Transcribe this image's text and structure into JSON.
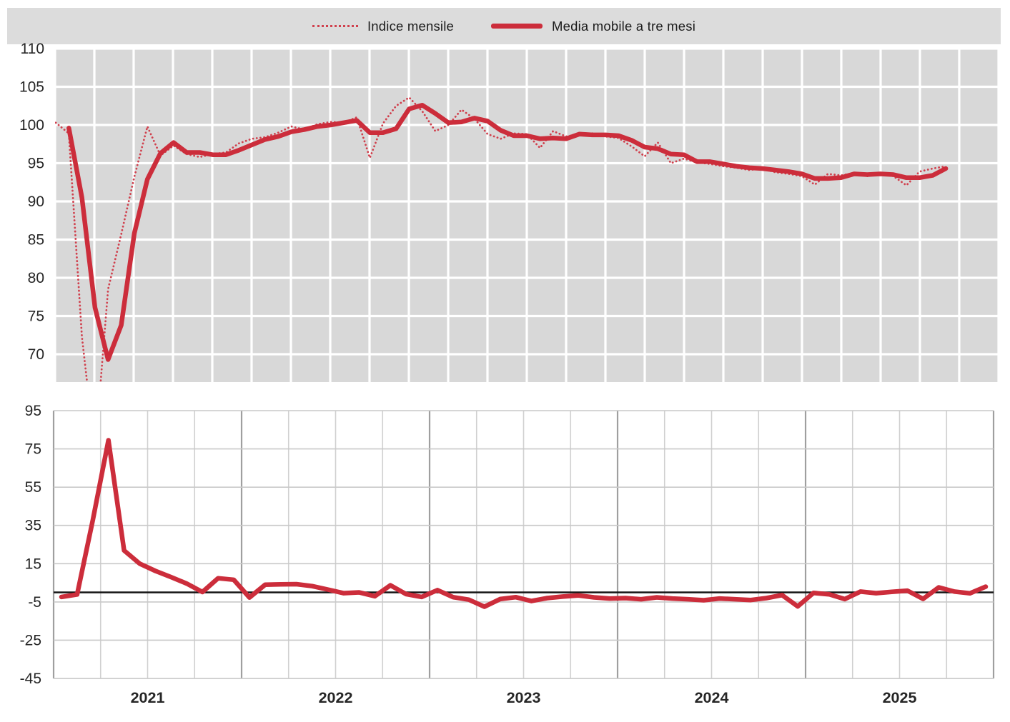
{
  "page": {
    "background": "#ffffff"
  },
  "colors": {
    "red_solid": "#cc2d3b",
    "red_dotted": "#d0404d",
    "banner_bg": "#dcdcdc",
    "plot_bg": "#d8d8d8",
    "grid_white": "#ffffff",
    "grid_light": "#c9c9c9",
    "grid_quarter": "#d0d0d0",
    "grid_year": "#9f9f9f",
    "zero_line": "#141414",
    "tick_text": "#262626"
  },
  "legend": {
    "items": [
      {
        "label": "Indice mensile",
        "swatch": "dotted-line"
      },
      {
        "label": "Media mobile a tre mesi",
        "swatch": "solid-line"
      }
    ]
  },
  "chart_data": [
    {
      "id": "indice-destagionalizzato",
      "type": "line",
      "title": "",
      "xlabel": "",
      "ylabel": "",
      "x_start_month": "2020-01",
      "x_axis_end_month": "2025-12",
      "ylim": [
        66.35,
        110
      ],
      "y_ticks": [
        110,
        105,
        100,
        95,
        90,
        85,
        80,
        75,
        70
      ],
      "grid": "white gridlines on gray background, vertical lines quarterly",
      "legend_position": "top-center",
      "series": [
        {
          "name": "Indice mensile",
          "style": "dotted",
          "start_month": "2020-01",
          "values": [
            100.3,
            98.9,
            72.3,
            57.2,
            78.5,
            85.7,
            93.2,
            99.8,
            96.0,
            97.3,
            96.2,
            95.8,
            96.2,
            96.4,
            97.6,
            98.2,
            98.4,
            99.0,
            99.8,
            99.4,
            100.1,
            100.4,
            100.3,
            101.0,
            95.7,
            100.2,
            102.5,
            103.6,
            101.8,
            99.2,
            100.0,
            102.0,
            100.8,
            98.8,
            98.2,
            98.9,
            98.8,
            97.0,
            99.2,
            98.5,
            98.8,
            98.9,
            98.5,
            98.3,
            97.2,
            95.9,
            97.7,
            95.0,
            95.6,
            95.1,
            94.9,
            94.6,
            94.4,
            94.1,
            94.3,
            93.8,
            93.6,
            93.3,
            92.2,
            93.6,
            93.4,
            93.7,
            93.3,
            93.8,
            93.3,
            92.1,
            93.9,
            94.3,
            94.6
          ]
        },
        {
          "name": "Media mobile a tre mesi",
          "style": "solid",
          "start_month": "2020-02",
          "values": [
            99.6,
            90.5,
            76.1,
            69.3,
            73.8,
            85.8,
            92.9,
            96.3,
            97.7,
            96.4,
            96.4,
            96.1,
            96.1,
            96.7,
            97.4,
            98.1,
            98.5,
            99.1,
            99.4,
            99.8,
            100.0,
            100.3,
            100.6,
            99.0,
            99.0,
            99.5,
            102.1,
            102.6,
            101.5,
            100.3,
            100.4,
            100.9,
            100.5,
            99.3,
            98.6,
            98.6,
            98.2,
            98.3,
            98.2,
            98.8,
            98.7,
            98.7,
            98.6,
            98.0,
            97.1,
            96.9,
            96.2,
            96.1,
            95.2,
            95.2,
            94.9,
            94.6,
            94.4,
            94.3,
            94.1,
            93.9,
            93.6,
            93.0,
            93.0,
            93.1,
            93.6,
            93.5,
            93.6,
            93.5,
            93.1,
            93.1,
            93.4,
            94.3
          ]
        }
      ]
    },
    {
      "id": "variazioni-percentuali",
      "type": "line",
      "title": "",
      "xlabel": "",
      "ylabel": "",
      "x_start_month": "2021-01",
      "x_axis_end_month": "2025-12",
      "ylim": [
        -45,
        95
      ],
      "y_ticks": [
        95,
        75,
        55,
        35,
        15,
        -5,
        -25,
        -45
      ],
      "x_tick_labels": [
        "2021",
        "2022",
        "2023",
        "2024",
        "2025"
      ],
      "zero_line": 0,
      "grid": "light gray gridlines on white, darker vertical lines at year boundaries",
      "series": [
        {
          "style": "solid",
          "start_month": "2021-01",
          "values": [
            -2.4,
            -1.1,
            37.7,
            79.5,
            21.9,
            15.0,
            11.2,
            8.0,
            4.6,
            0.2,
            7.4,
            6.6,
            -2.7,
            4.0,
            4.2,
            4.3,
            3.3,
            1.5,
            -0.4,
            0.0,
            -2.0,
            3.7,
            -0.9,
            -2.4,
            1.2,
            -2.5,
            -3.8,
            -7.5,
            -3.5,
            -2.5,
            -4.5,
            -3.0,
            -2.2,
            -1.6,
            -2.6,
            -3.2,
            -3.0,
            -3.6,
            -2.6,
            -3.2,
            -3.6,
            -4.1,
            -3.2,
            -3.6,
            -4.0,
            -3.0,
            -1.4,
            -7.3,
            -0.3,
            -1.0,
            -3.5,
            0.4,
            -0.4,
            0.3,
            0.9,
            -3.4,
            2.6,
            0.4,
            -0.5,
            3.0
          ]
        }
      ]
    }
  ]
}
